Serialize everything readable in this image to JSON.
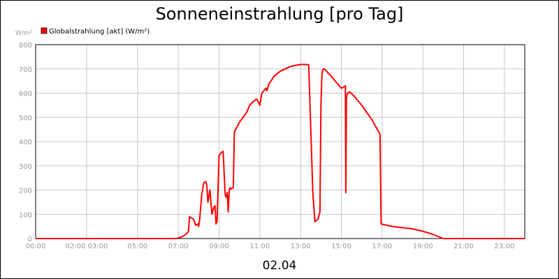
{
  "chart_data": {
    "type": "line",
    "title": "Sonneneinstrahlung [pro Tag]",
    "date_label": "02.04",
    "ylabel": "W/m²",
    "ylim": [
      0,
      800
    ],
    "xlim": [
      0,
      24
    ],
    "grid": true,
    "legend_position": "top-left",
    "y_ticks": [
      "0",
      "100",
      "200",
      "300",
      "400",
      "500",
      "600",
      "700",
      "800"
    ],
    "x_ticks": [
      {
        "label": "00:00",
        "value": 0
      },
      {
        "label": "02:00 03:00",
        "value": 2.5
      },
      {
        "label": "05:00",
        "value": 5
      },
      {
        "label": "07:00",
        "value": 7
      },
      {
        "label": "09:00",
        "value": 9
      },
      {
        "label": "11:00",
        "value": 11
      },
      {
        "label": "13:00",
        "value": 13
      },
      {
        "label": "15:00",
        "value": 15
      },
      {
        "label": "17:00",
        "value": 17
      },
      {
        "label": "19:00",
        "value": 19
      },
      {
        "label": "21:00",
        "value": 21
      },
      {
        "label": "23:00",
        "value": 23
      }
    ],
    "series": [
      {
        "name": "Globalstrahlung [akt] (W/m²)",
        "color": "#ff0000",
        "x": [
          0,
          6.9,
          7.1,
          7.25,
          7.4,
          7.5,
          7.55,
          7.75,
          7.85,
          7.95,
          8.0,
          8.05,
          8.15,
          8.25,
          8.35,
          8.4,
          8.45,
          8.5,
          8.55,
          8.65,
          8.75,
          8.8,
          8.85,
          8.9,
          9.0,
          9.05,
          9.2,
          9.3,
          9.35,
          9.4,
          9.45,
          9.5,
          9.55,
          9.6,
          9.7,
          9.75,
          10.0,
          10.35,
          10.5,
          10.75,
          10.85,
          10.95,
          11.0,
          11.1,
          11.2,
          11.3,
          11.35,
          11.45,
          11.55,
          11.7,
          12.0,
          12.5,
          12.8,
          13.0,
          13.2,
          13.3,
          13.4,
          13.6,
          13.7,
          13.75,
          13.85,
          13.95,
          14.0,
          14.05,
          14.1,
          14.2,
          14.3,
          14.5,
          14.7,
          14.9,
          15.0,
          15.2,
          15.22,
          15.25,
          15.3,
          15.4,
          15.6,
          16.0,
          16.5,
          16.9,
          16.95,
          17.5,
          18.0,
          18.5,
          19.0,
          19.4,
          19.7,
          20.0,
          21.0,
          22.0,
          23.0,
          24.0
        ],
        "values": [
          0,
          0,
          5,
          10,
          20,
          30,
          90,
          80,
          55,
          60,
          50,
          80,
          180,
          230,
          235,
          220,
          150,
          175,
          200,
          100,
          130,
          135,
          60,
          70,
          340,
          350,
          360,
          180,
          170,
          190,
          110,
          200,
          210,
          205,
          210,
          440,
          480,
          520,
          550,
          570,
          575,
          560,
          550,
          600,
          610,
          620,
          610,
          640,
          650,
          670,
          690,
          710,
          715,
          718,
          718,
          718,
          716,
          190,
          70,
          72,
          80,
          110,
          550,
          680,
          700,
          698,
          688,
          670,
          650,
          630,
          620,
          630,
          190,
          580,
          600,
          605,
          590,
          550,
          490,
          430,
          60,
          50,
          45,
          40,
          30,
          20,
          10,
          0,
          0,
          0,
          0,
          0
        ]
      }
    ]
  }
}
